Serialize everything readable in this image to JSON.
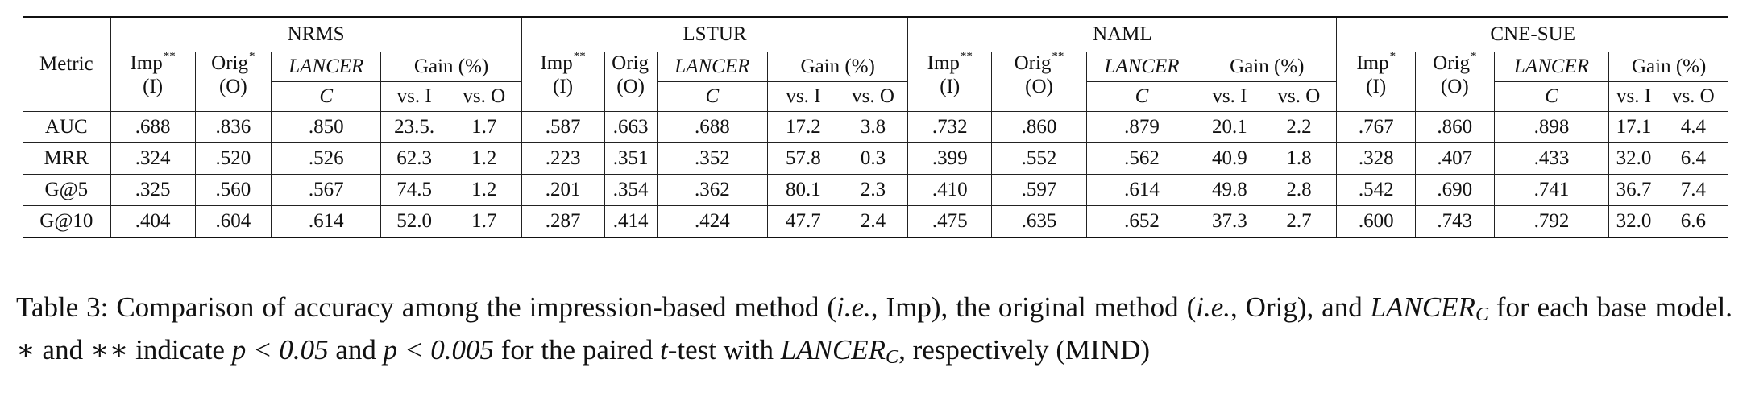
{
  "table": {
    "metric_label": "Metric",
    "models": [
      {
        "name": "NRMS",
        "imp": "Imp",
        "imp_sig": "**",
        "orig": "Orig",
        "orig_sig": "*"
      },
      {
        "name": "LSTUR",
        "imp": "Imp",
        "imp_sig": "**",
        "orig": "Orig",
        "orig_sig": ""
      },
      {
        "name": "NAML",
        "imp": "Imp",
        "imp_sig": "**",
        "orig": "Orig",
        "orig_sig": "**"
      },
      {
        "name": "CNE-SUE",
        "imp": "Imp",
        "imp_sig": "*",
        "orig": "Orig",
        "orig_sig": "*"
      }
    ],
    "labels": {
      "imp_abbrev": "(I)",
      "orig_abbrev": "(O)",
      "lancer": "LANCER",
      "lancer_variant": "C",
      "gain": "Gain (%)",
      "vs_i": "vs. I",
      "vs_o": "vs. O"
    },
    "rows": [
      {
        "metric": "AUC",
        "values": [
          [
            ".688",
            ".836",
            ".850",
            "23.5.",
            "1.7"
          ],
          [
            ".587",
            ".663",
            ".688",
            "17.2",
            "3.8"
          ],
          [
            ".732",
            ".860",
            ".879",
            "20.1",
            "2.2"
          ],
          [
            ".767",
            ".860",
            ".898",
            "17.1",
            "4.4"
          ]
        ]
      },
      {
        "metric": "MRR",
        "values": [
          [
            ".324",
            ".520",
            ".526",
            "62.3",
            "1.2"
          ],
          [
            ".223",
            ".351",
            ".352",
            "57.8",
            "0.3"
          ],
          [
            ".399",
            ".552",
            ".562",
            "40.9",
            "1.8"
          ],
          [
            ".328",
            ".407",
            ".433",
            "32.0",
            "6.4"
          ]
        ]
      },
      {
        "metric": "G@5",
        "values": [
          [
            ".325",
            ".560",
            ".567",
            "74.5",
            "1.2"
          ],
          [
            ".201",
            ".354",
            ".362",
            "80.1",
            "2.3"
          ],
          [
            ".410",
            ".597",
            ".614",
            "49.8",
            "2.8"
          ],
          [
            ".542",
            ".690",
            ".741",
            "36.7",
            "7.4"
          ]
        ]
      },
      {
        "metric": "G@10",
        "values": [
          [
            ".404",
            ".604",
            ".614",
            "52.0",
            "1.7"
          ],
          [
            ".287",
            ".414",
            ".424",
            "47.7",
            "2.4"
          ],
          [
            ".475",
            ".635",
            ".652",
            "37.3",
            "2.7"
          ],
          [
            ".600",
            ".743",
            ".792",
            "32.0",
            "6.6"
          ]
        ]
      }
    ]
  },
  "caption": {
    "label": "Table 3:",
    "t1": "Comparison of accuracy among the impression-based method (",
    "ie1": "i.e.",
    "t2": ", Imp), the original method (",
    "ie2": "i.e.",
    "t3": ", Orig), and",
    "lancer": "LANCER",
    "lancer_sub": "C",
    "t4": " for each base model. ",
    "star1": "∗",
    "t5": " and ",
    "star2": "∗∗",
    "t6": " indicate ",
    "p1": "p < 0.05",
    "t7": " and ",
    "p2": "p < 0.005",
    "t8": " for the paired ",
    "tvar": "t",
    "t9": "-test with ",
    "t10": ", respectively (MIND)"
  }
}
